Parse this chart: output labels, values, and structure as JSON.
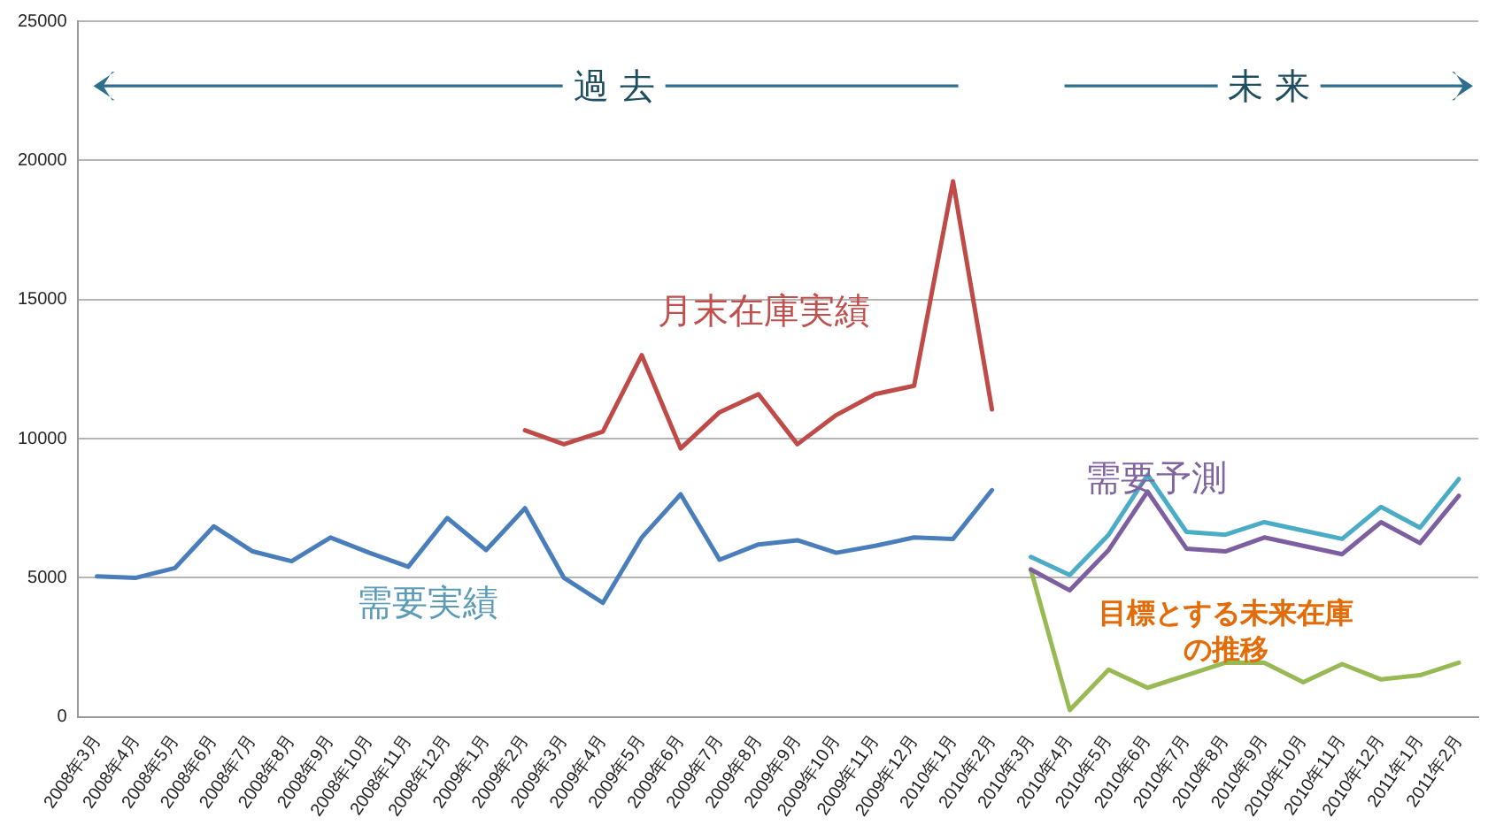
{
  "chart_data": {
    "type": "line",
    "categories": [
      "2008年3月",
      "2008年4月",
      "2008年5月",
      "2008年6月",
      "2008年7月",
      "2008年8月",
      "2008年9月",
      "2008年10月",
      "2008年11月",
      "2008年12月",
      "2009年1月",
      "2009年2月",
      "2009年3月",
      "2009年4月",
      "2009年5月",
      "2009年6月",
      "2009年7月",
      "2009年8月",
      "2009年9月",
      "2009年10月",
      "2009年11月",
      "2009年12月",
      "2010年1月",
      "2010年2月",
      "2010年3月",
      "2010年4月",
      "2010年5月",
      "2010年6月",
      "2010年7月",
      "2010年8月",
      "2010年9月",
      "2010年10月",
      "2010年11月",
      "2010年12月",
      "2011年1月",
      "2011年2月"
    ],
    "series": [
      {
        "name": "需要実績",
        "color": "#4a7ebb",
        "values": [
          5050,
          5000,
          5350,
          6850,
          5950,
          5600,
          6450,
          5900,
          5400,
          7150,
          6000,
          7500,
          5000,
          4100,
          6450,
          8000,
          5650,
          6200,
          6350,
          5900,
          6150,
          6450,
          6400,
          8150,
          null,
          null,
          null,
          null,
          null,
          null,
          null,
          null,
          null,
          null,
          null,
          null
        ]
      },
      {
        "name": "月末在庫実績",
        "color": "#be4b48",
        "values": [
          null,
          null,
          null,
          null,
          null,
          null,
          null,
          null,
          null,
          null,
          null,
          10300,
          9800,
          10250,
          13000,
          9650,
          10950,
          11600,
          9800,
          10850,
          11600,
          11900,
          19250,
          11050,
          null,
          null,
          null,
          null,
          null,
          null,
          null,
          null,
          null,
          null,
          null,
          null
        ]
      },
      {
        "color": "#4bacc6",
        "values": [
          null,
          null,
          null,
          null,
          null,
          null,
          null,
          null,
          null,
          null,
          null,
          null,
          null,
          null,
          null,
          null,
          null,
          null,
          null,
          null,
          null,
          null,
          null,
          null,
          5750,
          5100,
          6550,
          8700,
          6650,
          6550,
          7000,
          6700,
          6400,
          7550,
          6800,
          8550
        ]
      },
      {
        "name": "需要予測",
        "color": "#7d5fa0",
        "values": [
          null,
          null,
          null,
          null,
          null,
          null,
          null,
          null,
          null,
          null,
          null,
          null,
          null,
          null,
          null,
          null,
          null,
          null,
          null,
          null,
          null,
          null,
          null,
          null,
          5300,
          4550,
          6000,
          8100,
          6050,
          5950,
          6450,
          6150,
          5850,
          7000,
          6250,
          7950
        ]
      },
      {
        "name": "目標とする未来在庫の推移",
        "color": "#98b954",
        "values": [
          null,
          null,
          null,
          null,
          null,
          null,
          null,
          null,
          null,
          null,
          null,
          null,
          null,
          null,
          null,
          null,
          null,
          null,
          null,
          null,
          null,
          null,
          null,
          null,
          5300,
          250,
          1700,
          1050,
          1500,
          1950,
          1950,
          1250,
          1900,
          1350,
          1500,
          1950
        ]
      }
    ],
    "ylim": [
      0,
      25000
    ],
    "yticks": [
      0,
      5000,
      10000,
      15000,
      20000,
      25000
    ],
    "grid": "y",
    "legend": false,
    "marker": "none",
    "line_style": "solid",
    "annotations": [
      "過 去",
      "未 来"
    ]
  }
}
